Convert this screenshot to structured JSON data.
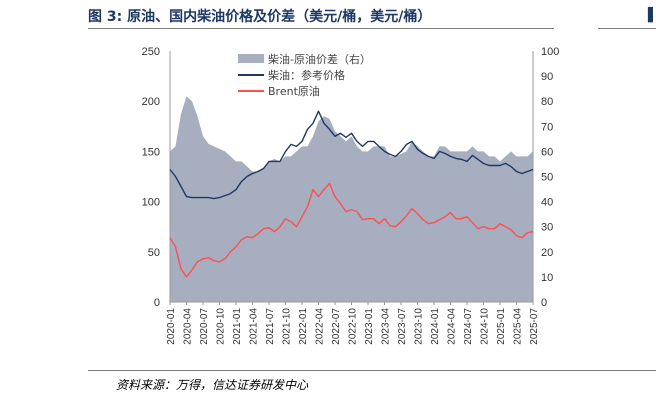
{
  "header": {
    "title": "图 3:  原油、国内柴油价格及价差（美元/桶，美元/桶）",
    "right_mark": "▌"
  },
  "footer": {
    "source": "资料来源：万得，信达证券研发中心"
  },
  "chart_data": {
    "type": "line",
    "title": "",
    "y_left": {
      "min": 0,
      "max": 250,
      "ticks": [
        0,
        50,
        100,
        150,
        200,
        250
      ]
    },
    "y_right": {
      "min": 0,
      "max": 100,
      "ticks": [
        0,
        10,
        20,
        30,
        40,
        50,
        60,
        70,
        80,
        90,
        100
      ]
    },
    "x_ticks": [
      "2020-01",
      "2020-04",
      "2020-07",
      "2020-10",
      "2021-01",
      "2021-04",
      "2021-07",
      "2021-10",
      "2022-01",
      "2022-04",
      "2022-07",
      "2022-10",
      "2023-01",
      "2023-04",
      "2023-07",
      "2023-10",
      "2024-01",
      "2024-04",
      "2024-07",
      "2024-10",
      "2025-01",
      "2025-04",
      "2025-07"
    ],
    "legend": {
      "position": "top-center",
      "items": [
        {
          "name": "柴油-原油价差（右）",
          "style": "area",
          "color": "#a6aebf"
        },
        {
          "name": "柴油：参考价格",
          "style": "line",
          "color": "#1f3864"
        },
        {
          "name": "Brent原油",
          "style": "line",
          "color": "#ff5050"
        }
      ]
    },
    "series": [
      {
        "name": "柴油-原油价差（右）",
        "axis": "right",
        "color": "#a6aebf",
        "months": [
          "2020-01",
          "2020-02",
          "2020-03",
          "2020-04",
          "2020-05",
          "2020-06",
          "2020-07",
          "2020-08",
          "2020-09",
          "2020-10",
          "2020-11",
          "2020-12",
          "2021-01",
          "2021-02",
          "2021-03",
          "2021-04",
          "2021-05",
          "2021-06",
          "2021-07",
          "2021-08",
          "2021-09",
          "2021-10",
          "2021-11",
          "2021-12",
          "2022-01",
          "2022-02",
          "2022-03",
          "2022-04",
          "2022-05",
          "2022-06",
          "2022-07",
          "2022-08",
          "2022-09",
          "2022-10",
          "2022-11",
          "2022-12",
          "2023-01",
          "2023-02",
          "2023-03",
          "2023-04",
          "2023-05",
          "2023-06",
          "2023-07",
          "2023-08",
          "2023-09",
          "2023-10",
          "2023-11",
          "2023-12",
          "2024-01",
          "2024-02",
          "2024-03",
          "2024-04",
          "2024-05",
          "2024-06",
          "2024-07",
          "2024-08",
          "2024-09",
          "2024-10",
          "2024-11",
          "2024-12",
          "2025-01",
          "2025-02",
          "2025-03",
          "2025-04",
          "2025-05",
          "2025-06",
          "2025-07"
        ],
        "values": [
          60,
          62,
          75,
          82,
          80,
          74,
          66,
          63,
          62,
          61,
          60,
          58,
          56,
          56,
          54,
          52,
          52,
          53,
          56,
          57,
          56,
          58,
          58,
          60,
          62,
          62,
          66,
          72,
          74,
          73,
          68,
          66,
          64,
          66,
          62,
          60,
          60,
          62,
          62,
          62,
          58,
          58,
          59,
          60,
          64,
          62,
          60,
          58,
          58,
          62,
          62,
          60,
          60,
          60,
          60,
          62,
          60,
          60,
          58,
          58,
          56,
          58,
          60,
          58,
          58,
          58,
          60
        ]
      },
      {
        "name": "柴油：参考价格",
        "axis": "left",
        "color": "#1f3864",
        "months": [
          "2020-01",
          "2020-02",
          "2020-03",
          "2020-04",
          "2020-05",
          "2020-06",
          "2020-07",
          "2020-08",
          "2020-09",
          "2020-10",
          "2020-11",
          "2020-12",
          "2021-01",
          "2021-02",
          "2021-03",
          "2021-04",
          "2021-05",
          "2021-06",
          "2021-07",
          "2021-08",
          "2021-09",
          "2021-10",
          "2021-11",
          "2021-12",
          "2022-01",
          "2022-02",
          "2022-03",
          "2022-04",
          "2022-05",
          "2022-06",
          "2022-07",
          "2022-08",
          "2022-09",
          "2022-10",
          "2022-11",
          "2022-12",
          "2023-01",
          "2023-02",
          "2023-03",
          "2023-04",
          "2023-05",
          "2023-06",
          "2023-07",
          "2023-08",
          "2023-09",
          "2023-10",
          "2023-11",
          "2023-12",
          "2024-01",
          "2024-02",
          "2024-03",
          "2024-04",
          "2024-05",
          "2024-06",
          "2024-07",
          "2024-08",
          "2024-09",
          "2024-10",
          "2024-11",
          "2024-12",
          "2025-01",
          "2025-02",
          "2025-03",
          "2025-04",
          "2025-05",
          "2025-06",
          "2025-07"
        ],
        "values": [
          132,
          125,
          115,
          105,
          104,
          104,
          104,
          104,
          103,
          104,
          106,
          108,
          112,
          120,
          125,
          128,
          130,
          133,
          140,
          140,
          140,
          150,
          157,
          155,
          160,
          172,
          178,
          190,
          178,
          172,
          165,
          168,
          164,
          168,
          160,
          155,
          160,
          160,
          155,
          150,
          147,
          145,
          150,
          157,
          160,
          152,
          148,
          145,
          143,
          150,
          148,
          145,
          143,
          142,
          140,
          146,
          142,
          138,
          136,
          136,
          136,
          138,
          135,
          130,
          128,
          130,
          132
        ]
      },
      {
        "name": "Brent原油",
        "axis": "left",
        "color": "#ff5050",
        "months": [
          "2020-01",
          "2020-02",
          "2020-03",
          "2020-04",
          "2020-05",
          "2020-06",
          "2020-07",
          "2020-08",
          "2020-09",
          "2020-10",
          "2020-11",
          "2020-12",
          "2021-01",
          "2021-02",
          "2021-03",
          "2021-04",
          "2021-05",
          "2021-06",
          "2021-07",
          "2021-08",
          "2021-09",
          "2021-10",
          "2021-11",
          "2021-12",
          "2022-01",
          "2022-02",
          "2022-03",
          "2022-04",
          "2022-05",
          "2022-06",
          "2022-07",
          "2022-08",
          "2022-09",
          "2022-10",
          "2022-11",
          "2022-12",
          "2023-01",
          "2023-02",
          "2023-03",
          "2023-04",
          "2023-05",
          "2023-06",
          "2023-07",
          "2023-08",
          "2023-09",
          "2023-10",
          "2023-11",
          "2023-12",
          "2024-01",
          "2024-02",
          "2024-03",
          "2024-04",
          "2024-05",
          "2024-06",
          "2024-07",
          "2024-08",
          "2024-09",
          "2024-10",
          "2024-11",
          "2024-12",
          "2025-01",
          "2025-02",
          "2025-03",
          "2025-04",
          "2025-05",
          "2025-06",
          "2025-07"
        ],
        "values": [
          64,
          55,
          33,
          25,
          32,
          40,
          43,
          44,
          41,
          40,
          43,
          50,
          55,
          62,
          65,
          64,
          68,
          73,
          74,
          70,
          75,
          83,
          80,
          75,
          85,
          95,
          112,
          105,
          112,
          118,
          105,
          98,
          90,
          92,
          90,
          82,
          83,
          83,
          78,
          83,
          76,
          75,
          80,
          86,
          93,
          88,
          82,
          78,
          79,
          82,
          85,
          89,
          83,
          83,
          85,
          79,
          73,
          75,
          73,
          73,
          78,
          75,
          72,
          66,
          64,
          69,
          70
        ]
      }
    ]
  }
}
